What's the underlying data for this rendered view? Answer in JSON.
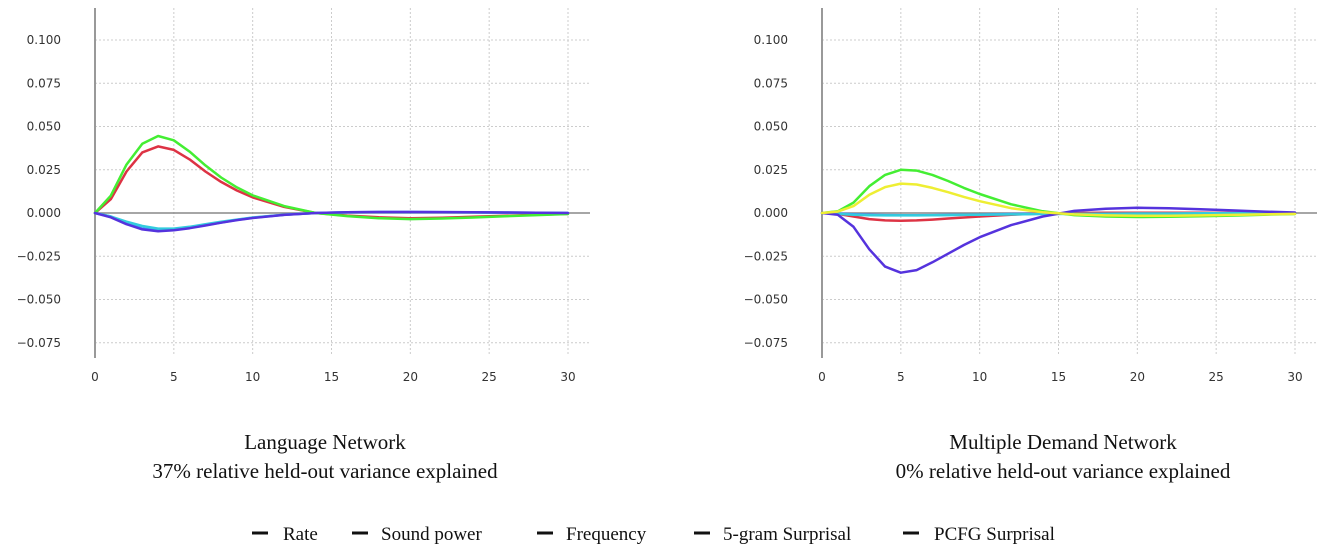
{
  "chart_data": [
    {
      "type": "line",
      "title": "Language Network",
      "subtitle": "37% relative held-out variance explained",
      "xlabel": "",
      "ylabel": "",
      "xlim": [
        0,
        30
      ],
      "ylim": [
        -0.075,
        0.1
      ],
      "grid": true,
      "x_ticks": [
        "0",
        "5",
        "10",
        "15",
        "20",
        "25",
        "30"
      ],
      "y_ticks": [
        "0.100",
        "0.075",
        "0.050",
        "0.025",
        "0.000",
        "−0.025",
        "−0.050",
        "−0.075"
      ],
      "x": [
        0,
        1,
        2,
        3,
        4,
        5,
        6,
        7,
        8,
        9,
        10,
        12,
        14,
        16,
        18,
        20,
        22,
        24,
        26,
        28,
        30
      ],
      "series": [
        {
          "name": "Rate",
          "color": "#4488ff",
          "values": [
            0,
            -0.002,
            -0.006,
            -0.009,
            -0.0098,
            -0.0095,
            -0.0085,
            -0.007,
            -0.0055,
            -0.004,
            -0.0028,
            -0.001,
            0,
            0.0004,
            0.0006,
            0.0006,
            0.0005,
            0.0004,
            0.0003,
            0.0002,
            0
          ]
        },
        {
          "name": "Sound power",
          "color": "#dd3344",
          "values": [
            0,
            0.008,
            0.024,
            0.035,
            0.0385,
            0.0365,
            0.031,
            0.024,
            0.018,
            0.013,
            0.009,
            0.0035,
            0,
            -0.0015,
            -0.0025,
            -0.003,
            -0.0028,
            -0.0022,
            -0.0016,
            -0.001,
            -0.0005
          ]
        },
        {
          "name": "Frequency",
          "color": "#33ccdd",
          "values": [
            0,
            -0.002,
            -0.005,
            -0.0075,
            -0.009,
            -0.009,
            -0.008,
            -0.0065,
            -0.005,
            -0.0038,
            -0.0026,
            -0.001,
            0,
            0.0003,
            0.0005,
            0.0005,
            0.0004,
            0.0003,
            0.0002,
            0.0001,
            0
          ]
        },
        {
          "name": "5-gram Surprisal",
          "color": "#44ee33",
          "values": [
            0,
            0.01,
            0.028,
            0.04,
            0.0445,
            0.042,
            0.0355,
            0.0275,
            0.0205,
            0.0148,
            0.0102,
            0.004,
            0,
            -0.0018,
            -0.003,
            -0.0035,
            -0.0032,
            -0.0026,
            -0.0019,
            -0.0012,
            -0.0006
          ]
        },
        {
          "name": "PCFG Surprisal",
          "color": "#5533dd",
          "values": [
            0,
            -0.0025,
            -0.0065,
            -0.0095,
            -0.0105,
            -0.01,
            -0.0088,
            -0.0072,
            -0.0056,
            -0.0041,
            -0.0029,
            -0.0011,
            0,
            0.0004,
            0.0006,
            0.0006,
            0.0005,
            0.0004,
            0.0003,
            0.0002,
            0
          ]
        }
      ]
    },
    {
      "type": "line",
      "title": "Multiple Demand Network",
      "subtitle": "0% relative held-out variance explained",
      "xlabel": "",
      "ylabel": "",
      "xlim": [
        0,
        30
      ],
      "ylim": [
        -0.075,
        0.1
      ],
      "grid": true,
      "x_ticks": [
        "0",
        "5",
        "10",
        "15",
        "20",
        "25",
        "30"
      ],
      "y_ticks": [
        "0.100",
        "0.075",
        "0.050",
        "0.025",
        "0.000",
        "−0.025",
        "−0.050",
        "−0.075"
      ],
      "x": [
        0,
        1,
        2,
        3,
        4,
        5,
        6,
        7,
        8,
        9,
        10,
        12,
        14,
        16,
        18,
        20,
        22,
        24,
        26,
        28,
        30
      ],
      "series": [
        {
          "name": "Rate",
          "color": "#4488ff",
          "values": [
            0,
            -0.0003,
            -0.0007,
            -0.001,
            -0.0012,
            -0.0013,
            -0.0013,
            -0.0012,
            -0.0011,
            -0.001,
            -0.0009,
            -0.0006,
            -0.0003,
            -0.0001,
            0,
            0,
            0,
            0,
            0,
            0,
            0
          ]
        },
        {
          "name": "Sound power",
          "color": "#dd3344",
          "values": [
            0,
            -0.0005,
            -0.002,
            -0.0035,
            -0.0043,
            -0.0045,
            -0.0043,
            -0.0038,
            -0.0032,
            -0.0026,
            -0.002,
            -0.001,
            -0.0003,
            0,
            0.0001,
            0.0001,
            0.0001,
            0.0001,
            0,
            0,
            0
          ]
        },
        {
          "name": "Frequency",
          "color": "#33ccdd",
          "values": [
            0,
            -0.0005,
            -0.001,
            -0.0013,
            -0.0014,
            -0.0014,
            -0.0014,
            -0.0013,
            -0.0012,
            -0.0011,
            -0.001,
            -0.0008,
            -0.0006,
            -0.0005,
            -0.0004,
            -0.0003,
            -0.0003,
            -0.0002,
            -0.0002,
            -0.0001,
            -0.0001
          ]
        },
        {
          "name": "5-gram Surprisal",
          "color": "#44ee33",
          "values": [
            0,
            0.001,
            0.006,
            0.0155,
            0.022,
            0.025,
            0.0245,
            0.022,
            0.0185,
            0.0145,
            0.011,
            0.005,
            0.001,
            -0.0012,
            -0.002,
            -0.0023,
            -0.0022,
            -0.0019,
            -0.0015,
            -0.001,
            -0.0006
          ]
        },
        {
          "name": "PCFG Surprisal",
          "color": "#5533dd",
          "values": [
            0,
            -0.001,
            -0.008,
            -0.021,
            -0.031,
            -0.0345,
            -0.033,
            -0.0285,
            -0.0235,
            -0.0185,
            -0.014,
            -0.007,
            -0.002,
            0.0012,
            0.0025,
            0.003,
            0.0028,
            0.0022,
            0.0015,
            0.0008,
            0.0003
          ]
        },
        {
          "name": "",
          "color": "#eeee33",
          "values": [
            0,
            0.0008,
            0.004,
            0.0105,
            0.015,
            0.017,
            0.0165,
            0.0145,
            0.012,
            0.0093,
            0.0068,
            0.0028,
            0.0004,
            -0.0008,
            -0.0014,
            -0.0016,
            -0.0016,
            -0.0014,
            -0.0011,
            -0.0008,
            -0.0005
          ]
        }
      ]
    }
  ],
  "legend": {
    "items": [
      {
        "label": "Rate"
      },
      {
        "label": "Sound power"
      },
      {
        "label": "Frequency"
      },
      {
        "label": "5-gram Surprisal"
      },
      {
        "label": "PCFG Surprisal"
      }
    ]
  }
}
